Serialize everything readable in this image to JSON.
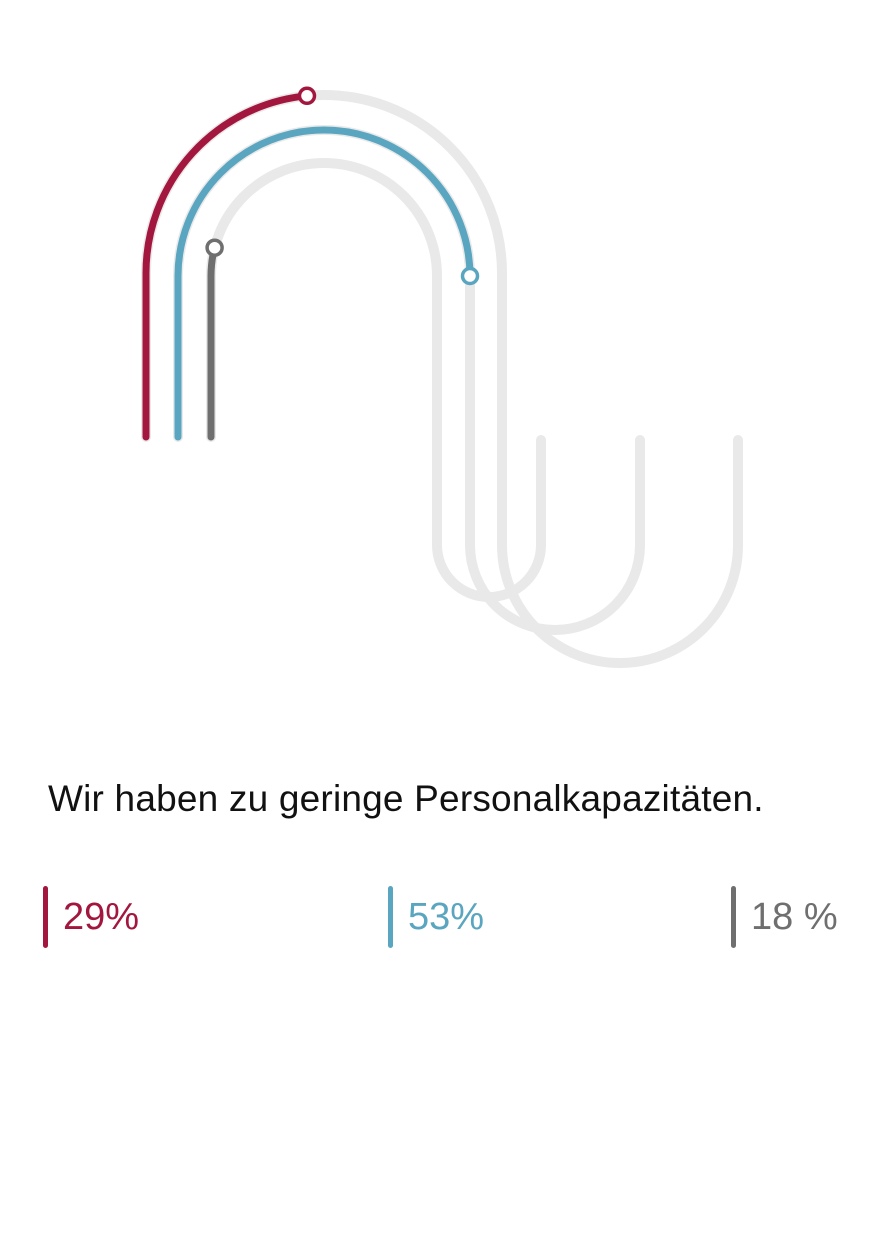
{
  "chart_data": {
    "type": "gauge-tracks",
    "question": "Wir haben zu geringe Personalkapazitäten.",
    "series": [
      {
        "value": 29,
        "label": "29%",
        "color": "#a3173f"
      },
      {
        "value": 53,
        "label": "53%",
        "color": "#5aa5c0"
      },
      {
        "value": 18,
        "label": "18 %",
        "color": "#6f6f6f"
      }
    ],
    "track_color": "#e9e9e9",
    "scale_max": 100
  }
}
